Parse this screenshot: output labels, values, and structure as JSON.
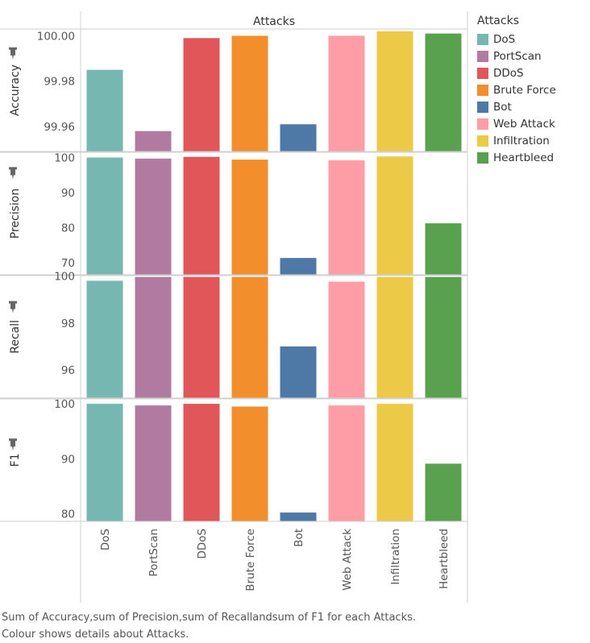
{
  "chart_data": {
    "type": "bar",
    "column_header": "Attacks",
    "categories": [
      "DoS",
      "PortScan",
      "DDoS",
      "Brute Force",
      "Bot",
      "Web Attack",
      "Infiltration",
      "Heartbleed"
    ],
    "colors": [
      "#76b7b2",
      "#b07aa1",
      "#e15759",
      "#f28e2b",
      "#4e79a7",
      "#ff9da7",
      "#edc948",
      "#59a14f"
    ],
    "panels": [
      {
        "name": "Accuracy",
        "ylim": [
          99.949,
          100.003
        ],
        "ticks": [
          99.96,
          99.98,
          100.0
        ],
        "tick_labels": [
          "99.96",
          "99.98",
          "100.00"
        ],
        "values": [
          99.985,
          99.958,
          99.999,
          100.0,
          99.961,
          100.0,
          100.002,
          100.001
        ]
      },
      {
        "name": "Precision",
        "ylim": [
          66.5,
          101.5
        ],
        "ticks": [
          70,
          80,
          90,
          100
        ],
        "tick_labels": [
          "70",
          "80",
          "90",
          "100"
        ],
        "values": [
          100.0,
          99.7,
          100.2,
          99.4,
          71.3,
          99.2,
          100.3,
          81.2
        ]
      },
      {
        "name": "Recall",
        "ylim": [
          94.8,
          100.02
        ],
        "ticks": [
          96,
          98,
          100
        ],
        "tick_labels": [
          "96",
          "98",
          "100"
        ],
        "values": [
          99.8,
          99.96,
          99.96,
          99.96,
          97.0,
          99.76,
          99.96,
          99.96
        ]
      },
      {
        "name": "F1",
        "ylim": [
          78.6,
          100.9
        ],
        "ticks": [
          80,
          90,
          100
        ],
        "tick_labels": [
          "80",
          "90",
          "100"
        ],
        "values": [
          100.0,
          99.7,
          100.0,
          99.5,
          80.2,
          99.7,
          100.0,
          89.1
        ]
      }
    ],
    "legend": {
      "title": "Attacks",
      "position": "right"
    },
    "caption": [
      "Sum of Accuracy,sum of Precision,sum of Recallandsum of F1 for each Attacks.",
      "Colour shows details about Attacks."
    ]
  }
}
